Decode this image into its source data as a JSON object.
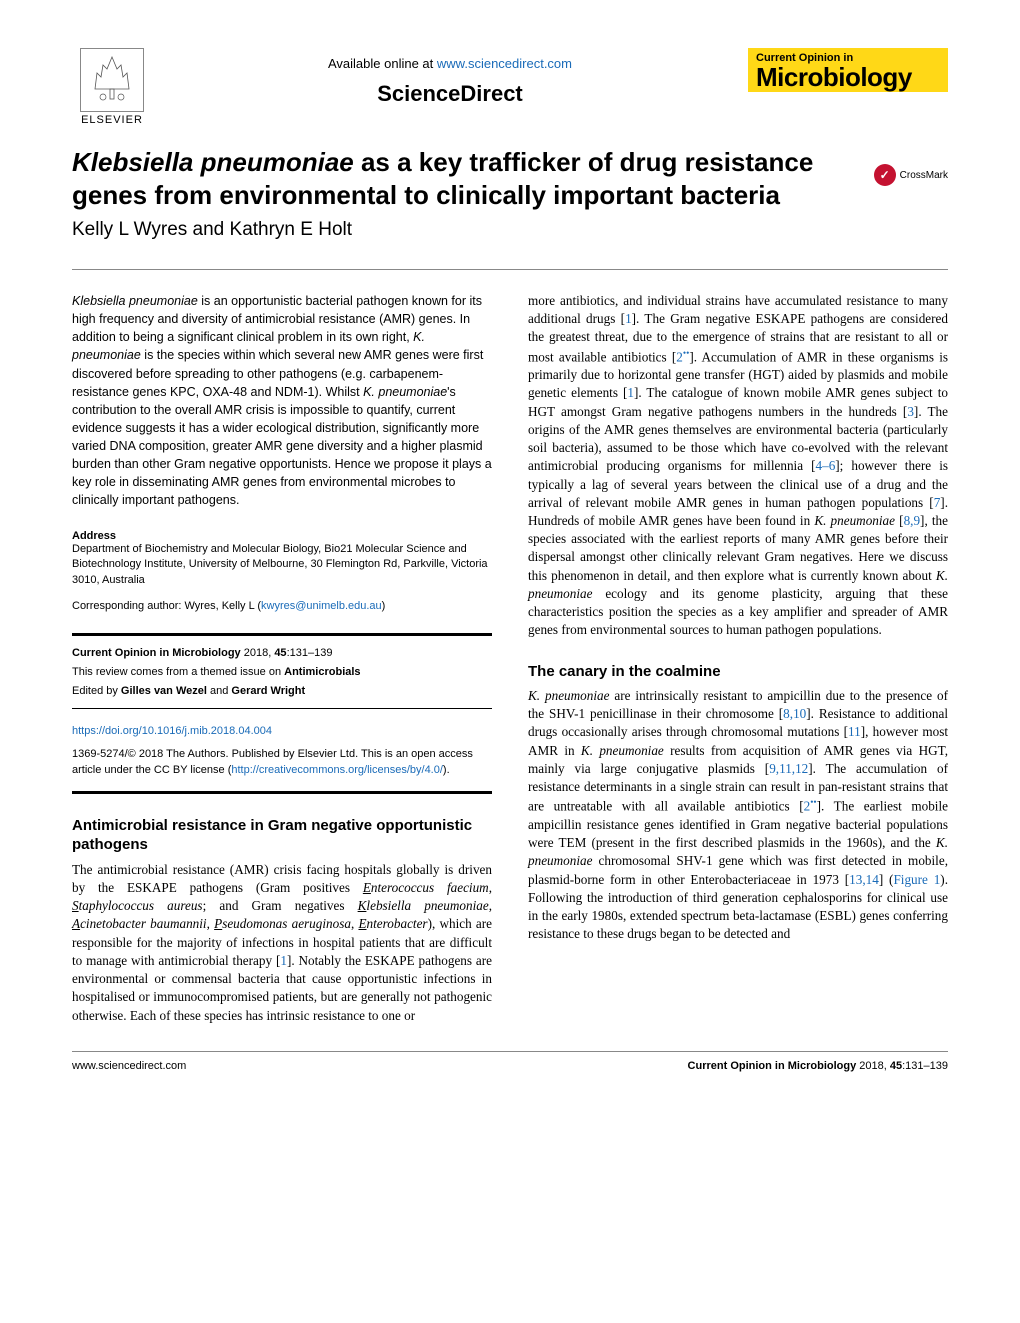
{
  "header": {
    "available_online_prefix": "Available online at ",
    "available_online_link": "www.sciencedirect.com",
    "sciencedirect": "ScienceDirect",
    "elsevier": "ELSEVIER",
    "journal_line1": "Current Opinion in",
    "journal_line2": "Microbiology"
  },
  "crossmark": {
    "label": "CrossMark"
  },
  "title": {
    "italic_species": "Klebsiella pneumoniae",
    "rest": " as a key trafficker of drug resistance genes from environmental to clinically important bacteria"
  },
  "authors": "Kelly L Wyres and Kathryn E Holt",
  "abstract": {
    "text_parts": [
      {
        "italic": true,
        "t": "Klebsiella pneumoniae"
      },
      {
        "italic": false,
        "t": " is an opportunistic bacterial pathogen known for its high frequency and diversity of antimicrobial resistance (AMR) genes. In addition to being a significant clinical problem in its own right, "
      },
      {
        "italic": true,
        "t": "K. pneumoniae"
      },
      {
        "italic": false,
        "t": " is the species within which several new AMR genes were first discovered before spreading to other pathogens (e.g. carbapenem-resistance genes KPC, OXA-48 and NDM-1). Whilst "
      },
      {
        "italic": true,
        "t": "K. pneumoniae"
      },
      {
        "italic": false,
        "t": "'s contribution to the overall AMR crisis is impossible to quantify, current evidence suggests it has a wider ecological distribution, significantly more varied DNA composition, greater AMR gene diversity and a higher plasmid burden than other Gram negative opportunists. Hence we propose it plays a key role in disseminating AMR genes from environmental microbes to clinically important pathogens."
      }
    ]
  },
  "address": {
    "label": "Address",
    "text": "Department of Biochemistry and Molecular Biology, Bio21 Molecular Science and Biotechnology Institute, University of Melbourne, 30 Flemington Rd, Parkville, Victoria 3010, Australia"
  },
  "corresponding": {
    "prefix": "Corresponding author: Wyres, Kelly L (",
    "email": "kwyres@unimelb.edu.au",
    "suffix": ")"
  },
  "meta": {
    "journal_bold": "Current Opinion in Microbiology",
    "year_vol": " 2018, ",
    "vol_pages_bold": "45",
    "pages": ":131–139",
    "themed_prefix": "This review comes from a themed issue on ",
    "themed_bold": "Antimicrobials",
    "edited_prefix": "Edited by ",
    "editor1": "Gilles van Wezel",
    "and": " and ",
    "editor2": "Gerard Wright"
  },
  "doi": {
    "link": "https://doi.org/10.1016/j.mib.2018.04.004",
    "copyright_prefix": "1369-5274/© 2018 The Authors. Published by Elsevier Ltd. This is an open access article under the CC BY license (",
    "cc_link": "http://creativecommons.org/licenses/by/4.0/",
    "copyright_suffix": ")."
  },
  "left_section": {
    "heading": "Antimicrobial resistance in Gram negative opportunistic pathogens",
    "paragraph_parts": [
      {
        "t": "The antimicrobial resistance (AMR) crisis facing hospitals globally is driven by the ESKAPE pathogens (Gram positives "
      },
      {
        "italic": true,
        "ul_first": true,
        "t": "Enterococcus faecium"
      },
      {
        "t": ", "
      },
      {
        "italic": true,
        "ul_first": true,
        "t": "Staphylococcus aureus"
      },
      {
        "t": "; and Gram negatives "
      },
      {
        "italic": true,
        "ul_first": true,
        "t": "Klebsiella pneumoniae"
      },
      {
        "t": ", "
      },
      {
        "italic": true,
        "ul_first": true,
        "t": "Acinetobacter baumannii"
      },
      {
        "t": ", "
      },
      {
        "italic": true,
        "ul_first": true,
        "t": "Pseudomonas aeruginosa"
      },
      {
        "t": ", "
      },
      {
        "italic": true,
        "ul_first": true,
        "t": "Enterobacter"
      },
      {
        "t": "), which are responsible for the majority of infections in hospital patients that are difficult to manage with antimicrobial therapy ["
      },
      {
        "ref": true,
        "t": "1"
      },
      {
        "t": "]. Notably the ESKAPE pathogens are environmental or commensal bacteria that cause opportunistic infections in hospitalised or immunocompromised patients, but are generally not pathogenic otherwise. Each of these species has intrinsic resistance to one or"
      }
    ]
  },
  "right_col": {
    "intro_paragraph_parts": [
      {
        "t": "more antibiotics, and individual strains have accumulated resistance to many additional drugs ["
      },
      {
        "ref": true,
        "t": "1"
      },
      {
        "t": "]. The Gram negative ESKAPE pathogens are considered the greatest threat, due to the emergence of strains that are resistant to all or most available antibiotics ["
      },
      {
        "ref": true,
        "t": "2"
      },
      {
        "ref": true,
        "sup": true,
        "t": "••"
      },
      {
        "t": "]. Accumulation of AMR in these organisms is primarily due to horizontal gene transfer (HGT) aided by plasmids and mobile genetic elements ["
      },
      {
        "ref": true,
        "t": "1"
      },
      {
        "t": "]. The catalogue of known mobile AMR genes subject to HGT amongst Gram negative pathogens numbers in the hundreds ["
      },
      {
        "ref": true,
        "t": "3"
      },
      {
        "t": "]. The origins of the AMR genes themselves are environmental bacteria (particularly soil bacteria), assumed to be those which have co-evolved with the relevant antimicrobial producing organisms for millennia ["
      },
      {
        "ref": true,
        "t": "4–6"
      },
      {
        "t": "]; however there is typically a lag of several years between the clinical use of a drug and the arrival of relevant mobile AMR genes in human pathogen populations ["
      },
      {
        "ref": true,
        "t": "7"
      },
      {
        "t": "]. Hundreds of mobile AMR genes have been found in "
      },
      {
        "italic": true,
        "t": "K. pneumoniae"
      },
      {
        "t": " ["
      },
      {
        "ref": true,
        "t": "8,9"
      },
      {
        "t": "], the species associated with the earliest reports of many AMR genes before their dispersal amongst other clinically relevant Gram negatives. Here we discuss this phenomenon in detail, and then explore what is currently known about "
      },
      {
        "italic": true,
        "t": "K. pneumoniae"
      },
      {
        "t": " ecology and its genome plasticity, arguing that these characteristics position the species as a key amplifier and spreader of AMR genes from environmental sources to human pathogen populations."
      }
    ],
    "section2_heading": "The canary in the coalmine",
    "section2_paragraph_parts": [
      {
        "italic": true,
        "t": "K. pneumoniae"
      },
      {
        "t": " are intrinsically resistant to ampicillin due to the presence of the SHV-1 penicillinase in their chromosome ["
      },
      {
        "ref": true,
        "t": "8,10"
      },
      {
        "t": "]. Resistance to additional drugs occasionally arises through chromosomal mutations ["
      },
      {
        "ref": true,
        "t": "11"
      },
      {
        "t": "], however most AMR in "
      },
      {
        "italic": true,
        "t": "K. pneumoniae"
      },
      {
        "t": " results from acquisition of AMR genes via HGT, mainly via large conjugative plasmids ["
      },
      {
        "ref": true,
        "t": "9,11,12"
      },
      {
        "t": "]. The accumulation of resistance determinants in a single strain can result in pan-resistant strains that are untreatable with all available antibiotics ["
      },
      {
        "ref": true,
        "t": "2"
      },
      {
        "ref": true,
        "sup": true,
        "t": "••"
      },
      {
        "t": "]. The earliest mobile ampicillin resistance genes identified in Gram negative bacterial populations were TEM (present in the first described plasmids in the 1960s), and the "
      },
      {
        "italic": true,
        "t": "K. pneumoniae"
      },
      {
        "t": " chromosomal SHV-1 gene which was first detected in mobile, plasmid-borne form in other Enterobacteriaceae in 1973 ["
      },
      {
        "ref": true,
        "t": "13,14"
      },
      {
        "t": "] ("
      },
      {
        "ref": true,
        "t": "Figure 1"
      },
      {
        "t": "). Following the introduction of third generation cephalosporins for clinical use in the early 1980s, extended spectrum beta-lactamase (ESBL) genes conferring resistance to these drugs began to be detected and"
      }
    ]
  },
  "footer": {
    "left": "www.sciencedirect.com",
    "right_prefix": "Current Opinion in Microbiology",
    "right_rest": " 2018, ",
    "right_vol": "45",
    "right_pages": ":131–139"
  },
  "colors": {
    "link": "#1a6bb8",
    "badge_bg": "#ffd817",
    "crossmark_red": "#c41230"
  }
}
